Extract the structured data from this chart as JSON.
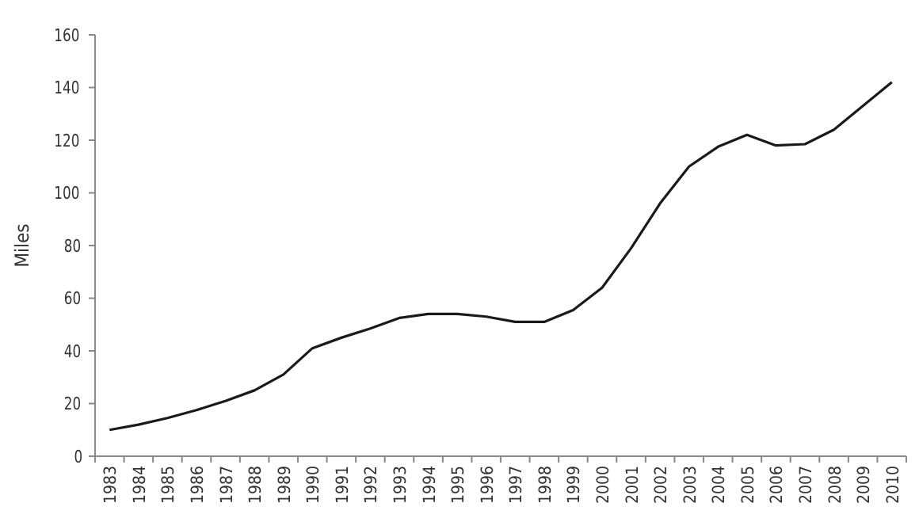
{
  "chart_data": {
    "type": "line",
    "ylabel": "Miles",
    "categories": [
      "1983",
      "1984",
      "1985",
      "1986",
      "1987",
      "1988",
      "1989",
      "1990",
      "1991",
      "1992",
      "1993",
      "1994",
      "1995",
      "1996",
      "1997",
      "1998",
      "1999",
      "2000",
      "2001",
      "2002",
      "2003",
      "2004",
      "2005",
      "2006",
      "2007",
      "2008",
      "2009",
      "2010"
    ],
    "series": [
      {
        "color": "#1a1a1a",
        "values": [
          10,
          12,
          14.5,
          17.5,
          21,
          25,
          31,
          41,
          45,
          48.5,
          52.5,
          54,
          54,
          53,
          51,
          51,
          55.5,
          64,
          79,
          96,
          110,
          117.5,
          122,
          118,
          118.5,
          124,
          133,
          142
        ]
      }
    ],
    "ylim": [
      0,
      160
    ],
    "yticks": [
      0,
      20,
      40,
      60,
      80,
      100,
      120,
      140,
      160
    ],
    "grid": false,
    "marker": "none",
    "line_style": "solid"
  }
}
